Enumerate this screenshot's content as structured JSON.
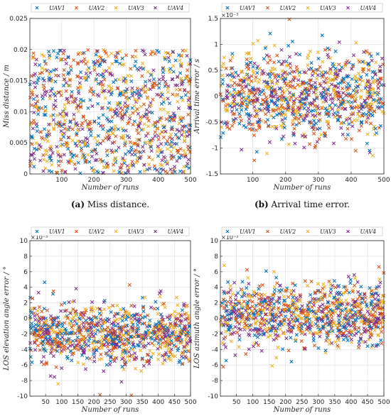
{
  "palette": {
    "UAV1": "#0072BD",
    "UAV2": "#D95319",
    "UAV3": "#EDB120",
    "UAV4": "#7E2F8E"
  },
  "marker": "x",
  "chart_data": [
    {
      "id": "a",
      "type": "scatter",
      "caption_label": "(a)",
      "caption_text": " Miss distance.",
      "xlabel": "Number of runs",
      "ylabel": "Miss distance / m",
      "xlim": [
        1,
        500
      ],
      "ylim": [
        0,
        0.025
      ],
      "xticks": [
        100,
        200,
        300,
        400,
        500
      ],
      "yticks": [
        0,
        0.005,
        0.01,
        0.015,
        0.02,
        0.025
      ],
      "ytick_labels": [
        "0",
        "0.005",
        "0.01",
        "0.015",
        "0.02",
        "0.025"
      ],
      "exponent_label": "",
      "grid": true,
      "legend": "top, horizontal, above plot",
      "series": [
        {
          "name": "UAV1",
          "distribution": "uniform",
          "low": 0.0,
          "high": 0.02,
          "points_per_series": 250
        },
        {
          "name": "UAV2",
          "distribution": "uniform",
          "low": 0.0,
          "high": 0.02,
          "points_per_series": 250
        },
        {
          "name": "UAV3",
          "distribution": "uniform",
          "low": 0.0,
          "high": 0.02,
          "points_per_series": 250
        },
        {
          "name": "UAV4",
          "distribution": "uniform",
          "low": 0.0,
          "high": 0.02,
          "points_per_series": 250
        }
      ]
    },
    {
      "id": "b",
      "type": "scatter",
      "caption_label": "(b)",
      "caption_text": " Arrival time error.",
      "xlabel": "Number of runs",
      "ylabel": "Arrival time error / s",
      "xlim": [
        1,
        500
      ],
      "ylim": [
        -0.0015,
        0.0015
      ],
      "xticks": [
        100,
        200,
        300,
        400,
        500
      ],
      "yticks": [
        -0.0015,
        -0.001,
        -0.0005,
        0,
        0.0005,
        0.001,
        0.0015
      ],
      "ytick_labels": [
        "-1.5",
        "-1",
        "-0.5",
        "0",
        "0.5",
        "1",
        "1.5"
      ],
      "exponent_label": "×10⁻³",
      "grid": true,
      "legend": "top, horizontal, above plot",
      "series": [
        {
          "name": "UAV1",
          "distribution": "normal",
          "mean": 0.0,
          "sd": 0.0004,
          "points_per_series": 250
        },
        {
          "name": "UAV2",
          "distribution": "normal",
          "mean": 0.0,
          "sd": 0.0004,
          "points_per_series": 250
        },
        {
          "name": "UAV3",
          "distribution": "normal",
          "mean": 0.0,
          "sd": 0.0004,
          "points_per_series": 250
        },
        {
          "name": "UAV4",
          "distribution": "normal",
          "mean": 0.0,
          "sd": 0.0004,
          "points_per_series": 250
        }
      ]
    },
    {
      "id": "c",
      "type": "scatter",
      "caption_label": "",
      "caption_text": "",
      "xlabel": "Number of runs",
      "ylabel": "LOS elevation angle error / °",
      "xlim": [
        1,
        500
      ],
      "ylim": [
        -0.01,
        0.01
      ],
      "xticks": [
        50,
        100,
        150,
        200,
        250,
        300,
        350,
        400,
        450,
        500
      ],
      "yticks": [
        -0.01,
        -0.008,
        -0.006,
        -0.004,
        -0.002,
        0,
        0.002,
        0.004,
        0.006,
        0.008,
        0.01
      ],
      "ytick_labels": [
        "-10",
        "-8",
        "-6",
        "-4",
        "-2",
        "0",
        "2",
        "4",
        "6",
        "8",
        "10"
      ],
      "exponent_label": "×10⁻³",
      "grid": true,
      "legend": "top, horizontal, above plot",
      "series": [
        {
          "name": "UAV1",
          "distribution": "normal",
          "mean": -0.002,
          "sd": 0.002,
          "points_per_series": 250
        },
        {
          "name": "UAV2",
          "distribution": "normal",
          "mean": -0.002,
          "sd": 0.002,
          "points_per_series": 250
        },
        {
          "name": "UAV3",
          "distribution": "normal",
          "mean": -0.002,
          "sd": 0.002,
          "points_per_series": 250
        },
        {
          "name": "UAV4",
          "distribution": "normal",
          "mean": -0.002,
          "sd": 0.002,
          "points_per_series": 250
        }
      ]
    },
    {
      "id": "d",
      "type": "scatter",
      "caption_label": "",
      "caption_text": "",
      "xlabel": "Number of runs",
      "ylabel": "LOS azimuth angle error / °",
      "xlim": [
        1,
        500
      ],
      "ylim": [
        -0.01,
        0.01
      ],
      "xticks": [
        50,
        100,
        150,
        200,
        250,
        300,
        350,
        400,
        450,
        500
      ],
      "yticks": [
        -0.01,
        -0.008,
        -0.006,
        -0.004,
        -0.002,
        0,
        0.002,
        0.004,
        0.006,
        0.008,
        0.01
      ],
      "ytick_labels": [
        "-10",
        "-8",
        "-6",
        "-4",
        "-2",
        "0",
        "2",
        "4",
        "6",
        "8",
        "10"
      ],
      "exponent_label": "×10⁻³",
      "grid": true,
      "legend": "top, horizontal, above plot",
      "series": [
        {
          "name": "UAV1",
          "distribution": "normal",
          "mean": 0.0005,
          "sd": 0.002,
          "points_per_series": 250
        },
        {
          "name": "UAV2",
          "distribution": "normal",
          "mean": 0.0005,
          "sd": 0.002,
          "points_per_series": 250
        },
        {
          "name": "UAV3",
          "distribution": "normal",
          "mean": 0.0005,
          "sd": 0.002,
          "points_per_series": 250
        },
        {
          "name": "UAV4",
          "distribution": "normal",
          "mean": 0.0005,
          "sd": 0.002,
          "points_per_series": 250
        }
      ]
    }
  ]
}
